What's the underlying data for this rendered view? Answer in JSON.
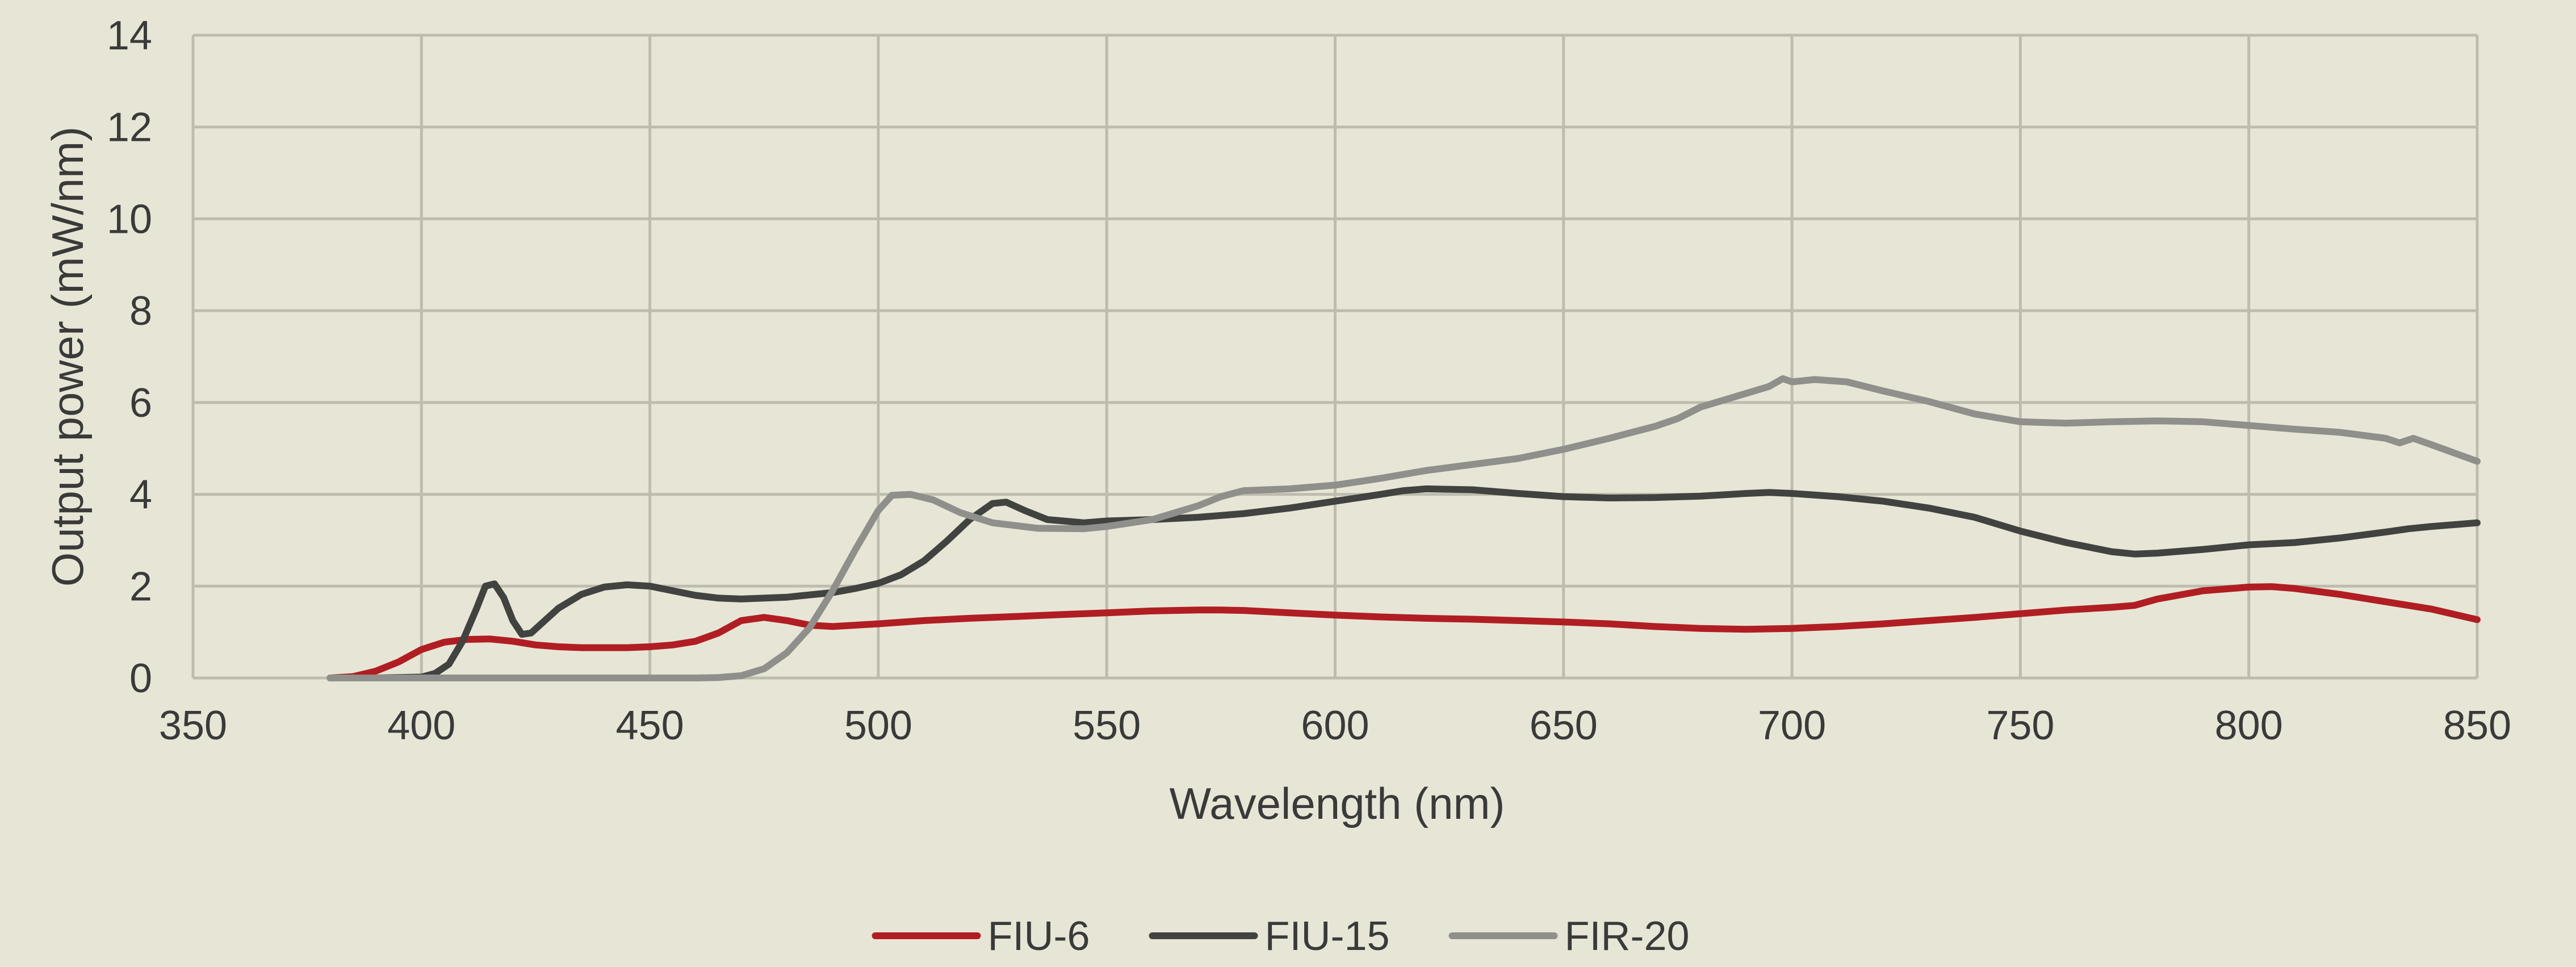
{
  "chart_data": {
    "type": "line",
    "title": "",
    "xlabel": "Wavelength (nm)",
    "ylabel": "Output power (mW/nm)",
    "xlim": [
      350,
      850
    ],
    "ylim": [
      0,
      14
    ],
    "xticks": [
      350,
      400,
      450,
      500,
      550,
      600,
      650,
      700,
      750,
      800,
      850
    ],
    "yticks": [
      0,
      2,
      4,
      6,
      8,
      10,
      12,
      14
    ],
    "grid": true,
    "legend_position": "bottom",
    "background_color": "#e7e6d6",
    "grid_color": "#bdbcae",
    "series": [
      {
        "name": "FIU-6",
        "color": "#b01e23",
        "points": [
          [
            380,
            0.0
          ],
          [
            385,
            0.03
          ],
          [
            390,
            0.15
          ],
          [
            395,
            0.35
          ],
          [
            400,
            0.62
          ],
          [
            405,
            0.78
          ],
          [
            410,
            0.84
          ],
          [
            415,
            0.85
          ],
          [
            420,
            0.8
          ],
          [
            425,
            0.72
          ],
          [
            430,
            0.68
          ],
          [
            435,
            0.66
          ],
          [
            440,
            0.66
          ],
          [
            445,
            0.66
          ],
          [
            450,
            0.68
          ],
          [
            455,
            0.72
          ],
          [
            460,
            0.8
          ],
          [
            465,
            0.98
          ],
          [
            470,
            1.25
          ],
          [
            475,
            1.32
          ],
          [
            480,
            1.25
          ],
          [
            485,
            1.15
          ],
          [
            490,
            1.12
          ],
          [
            495,
            1.15
          ],
          [
            500,
            1.18
          ],
          [
            510,
            1.25
          ],
          [
            520,
            1.3
          ],
          [
            530,
            1.34
          ],
          [
            540,
            1.38
          ],
          [
            550,
            1.42
          ],
          [
            560,
            1.46
          ],
          [
            570,
            1.48
          ],
          [
            575,
            1.48
          ],
          [
            580,
            1.47
          ],
          [
            590,
            1.42
          ],
          [
            600,
            1.37
          ],
          [
            610,
            1.33
          ],
          [
            620,
            1.3
          ],
          [
            630,
            1.28
          ],
          [
            640,
            1.25
          ],
          [
            650,
            1.22
          ],
          [
            660,
            1.18
          ],
          [
            670,
            1.12
          ],
          [
            680,
            1.08
          ],
          [
            690,
            1.06
          ],
          [
            700,
            1.08
          ],
          [
            710,
            1.12
          ],
          [
            720,
            1.18
          ],
          [
            730,
            1.25
          ],
          [
            740,
            1.32
          ],
          [
            750,
            1.4
          ],
          [
            760,
            1.48
          ],
          [
            770,
            1.54
          ],
          [
            775,
            1.58
          ],
          [
            780,
            1.72
          ],
          [
            790,
            1.9
          ],
          [
            800,
            1.98
          ],
          [
            805,
            1.99
          ],
          [
            810,
            1.95
          ],
          [
            820,
            1.82
          ],
          [
            830,
            1.66
          ],
          [
            840,
            1.5
          ],
          [
            850,
            1.27
          ]
        ]
      },
      {
        "name": "FIU-15",
        "color": "#414340",
        "points": [
          [
            380,
            0.0
          ],
          [
            390,
            0.0
          ],
          [
            400,
            0.02
          ],
          [
            403,
            0.1
          ],
          [
            406,
            0.3
          ],
          [
            409,
            0.8
          ],
          [
            412,
            1.5
          ],
          [
            414,
            2.0
          ],
          [
            416,
            2.05
          ],
          [
            418,
            1.75
          ],
          [
            420,
            1.25
          ],
          [
            422,
            0.95
          ],
          [
            424,
            0.98
          ],
          [
            427,
            1.25
          ],
          [
            430,
            1.52
          ],
          [
            435,
            1.82
          ],
          [
            440,
            1.98
          ],
          [
            445,
            2.03
          ],
          [
            450,
            2.0
          ],
          [
            455,
            1.9
          ],
          [
            460,
            1.8
          ],
          [
            465,
            1.74
          ],
          [
            470,
            1.72
          ],
          [
            480,
            1.76
          ],
          [
            490,
            1.86
          ],
          [
            495,
            1.95
          ],
          [
            500,
            2.06
          ],
          [
            505,
            2.25
          ],
          [
            510,
            2.55
          ],
          [
            515,
            2.98
          ],
          [
            520,
            3.45
          ],
          [
            525,
            3.8
          ],
          [
            528,
            3.83
          ],
          [
            532,
            3.65
          ],
          [
            537,
            3.45
          ],
          [
            545,
            3.38
          ],
          [
            550,
            3.42
          ],
          [
            560,
            3.45
          ],
          [
            570,
            3.5
          ],
          [
            580,
            3.58
          ],
          [
            590,
            3.7
          ],
          [
            600,
            3.85
          ],
          [
            610,
            4.0
          ],
          [
            615,
            4.08
          ],
          [
            620,
            4.12
          ],
          [
            630,
            4.1
          ],
          [
            640,
            4.02
          ],
          [
            650,
            3.95
          ],
          [
            660,
            3.92
          ],
          [
            670,
            3.93
          ],
          [
            680,
            3.96
          ],
          [
            690,
            4.02
          ],
          [
            695,
            4.04
          ],
          [
            700,
            4.02
          ],
          [
            710,
            3.95
          ],
          [
            720,
            3.85
          ],
          [
            730,
            3.7
          ],
          [
            740,
            3.5
          ],
          [
            750,
            3.2
          ],
          [
            760,
            2.95
          ],
          [
            770,
            2.75
          ],
          [
            775,
            2.7
          ],
          [
            780,
            2.72
          ],
          [
            790,
            2.8
          ],
          [
            800,
            2.9
          ],
          [
            810,
            2.95
          ],
          [
            820,
            3.05
          ],
          [
            830,
            3.18
          ],
          [
            835,
            3.25
          ],
          [
            840,
            3.3
          ],
          [
            850,
            3.38
          ]
        ]
      },
      {
        "name": "FIR-20",
        "color": "#8f8f8b",
        "points": [
          [
            380,
            0.0
          ],
          [
            400,
            0.0
          ],
          [
            420,
            0.0
          ],
          [
            440,
            0.0
          ],
          [
            460,
            0.0
          ],
          [
            465,
            0.01
          ],
          [
            470,
            0.05
          ],
          [
            475,
            0.2
          ],
          [
            480,
            0.55
          ],
          [
            485,
            1.1
          ],
          [
            490,
            1.9
          ],
          [
            495,
            2.8
          ],
          [
            500,
            3.65
          ],
          [
            503,
            3.98
          ],
          [
            507,
            4.0
          ],
          [
            512,
            3.88
          ],
          [
            518,
            3.6
          ],
          [
            525,
            3.38
          ],
          [
            535,
            3.26
          ],
          [
            545,
            3.25
          ],
          [
            550,
            3.3
          ],
          [
            560,
            3.45
          ],
          [
            570,
            3.75
          ],
          [
            575,
            3.95
          ],
          [
            580,
            4.08
          ],
          [
            590,
            4.12
          ],
          [
            600,
            4.2
          ],
          [
            610,
            4.35
          ],
          [
            620,
            4.52
          ],
          [
            630,
            4.65
          ],
          [
            640,
            4.78
          ],
          [
            650,
            4.98
          ],
          [
            660,
            5.22
          ],
          [
            670,
            5.48
          ],
          [
            675,
            5.65
          ],
          [
            680,
            5.9
          ],
          [
            690,
            6.2
          ],
          [
            695,
            6.35
          ],
          [
            698,
            6.52
          ],
          [
            700,
            6.45
          ],
          [
            705,
            6.5
          ],
          [
            712,
            6.45
          ],
          [
            720,
            6.25
          ],
          [
            730,
            6.02
          ],
          [
            740,
            5.75
          ],
          [
            750,
            5.58
          ],
          [
            760,
            5.55
          ],
          [
            770,
            5.58
          ],
          [
            780,
            5.6
          ],
          [
            790,
            5.58
          ],
          [
            800,
            5.5
          ],
          [
            810,
            5.42
          ],
          [
            820,
            5.35
          ],
          [
            830,
            5.22
          ],
          [
            833,
            5.12
          ],
          [
            836,
            5.22
          ],
          [
            840,
            5.08
          ],
          [
            850,
            4.72
          ]
        ]
      }
    ]
  }
}
